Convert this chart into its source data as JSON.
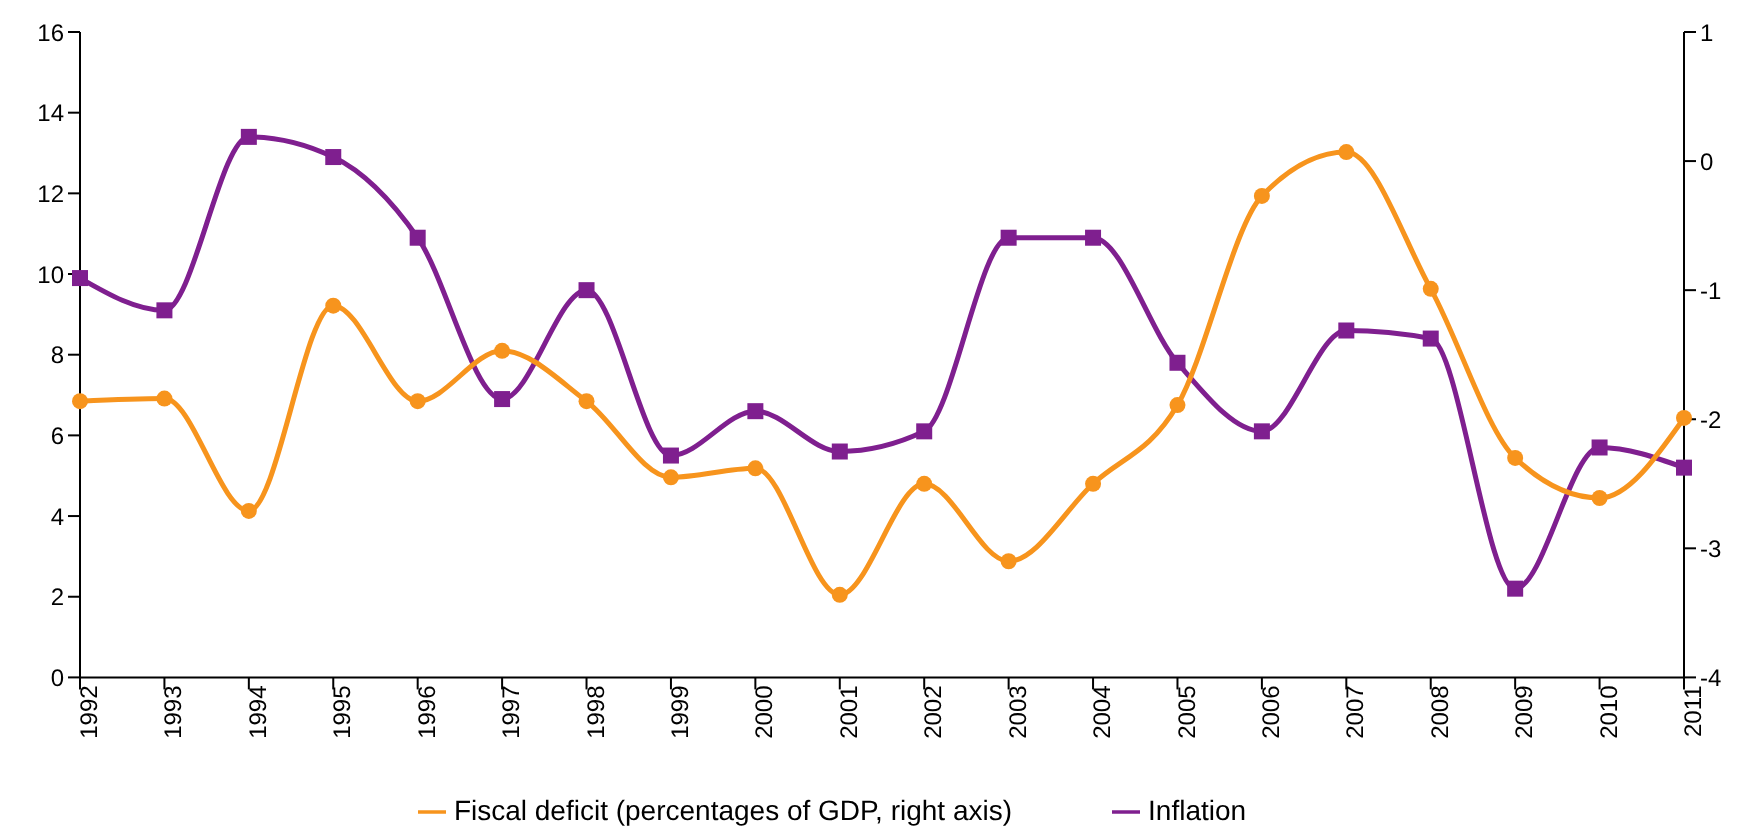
{
  "chart_data": {
    "type": "line",
    "categories": [
      "1992",
      "1993",
      "1994",
      "1995",
      "1996",
      "1997",
      "1998",
      "1999",
      "2000",
      "2001",
      "2002",
      "2003",
      "2004",
      "2005",
      "2006",
      "2007",
      "2008",
      "2009",
      "2010",
      "2011"
    ],
    "series": [
      {
        "name": "Inflation",
        "color": "#7f1f8f",
        "marker": "square",
        "values": [
          9.9,
          9.1,
          13.4,
          12.9,
          10.9,
          6.9,
          9.6,
          5.5,
          6.6,
          5.6,
          6.1,
          10.9,
          10.9,
          7.8,
          6.1,
          8.6,
          8.4,
          2.2,
          5.7,
          5.2
        ]
      },
      {
        "name": "Fiscal deficit (percentages of GDP, right axis)",
        "color": "#f7941d",
        "marker": "circle",
        "axis": "y2",
        "values": [
          -1.86,
          -1.84,
          -2.71,
          -1.12,
          -1.86,
          -1.47,
          -1.86,
          -2.45,
          -2.38,
          -3.36,
          -2.5,
          -3.1,
          -2.5,
          -1.89,
          -0.27,
          0.07,
          -0.99,
          -2.3,
          -2.61,
          -1.99
        ]
      }
    ],
    "ylim": [
      0,
      16
    ],
    "yticks": [
      0,
      2,
      4,
      6,
      8,
      10,
      12,
      14,
      16
    ],
    "y2lim": [
      -4,
      1
    ],
    "y2ticks": [
      -4,
      -3,
      -2,
      -1,
      0,
      1
    ],
    "grid": false,
    "legend": "bottom"
  }
}
